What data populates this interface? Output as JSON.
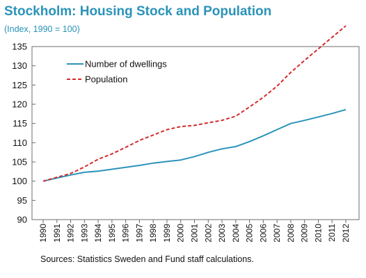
{
  "chart_data": {
    "type": "line",
    "title": "Stockholm: Housing Stock and Population",
    "subtitle": "(Index, 1990 = 100)",
    "xlabel": "",
    "ylabel": "",
    "x": [
      "1990",
      "1991",
      "1992",
      "1993",
      "1994",
      "1995",
      "1996",
      "1997",
      "1998",
      "1999",
      "2000",
      "2001",
      "2002",
      "2003",
      "2004",
      "2005",
      "2006",
      "2007",
      "2008",
      "2009",
      "2010",
      "2011",
      "2012"
    ],
    "ylim": [
      90,
      135
    ],
    "yticks": [
      90,
      95,
      100,
      105,
      110,
      115,
      120,
      125,
      130,
      135
    ],
    "grid": false,
    "legend": "top-left",
    "series": [
      {
        "name": "Number of dwellings",
        "color": "#2a93b9",
        "style": "solid",
        "values": [
          100,
          100.8,
          101.6,
          102.3,
          102.6,
          103.1,
          103.6,
          104.1,
          104.7,
          105.1,
          105.5,
          106.4,
          107.5,
          108.4,
          109.0,
          110.3,
          111.8,
          113.4,
          115.0,
          115.8,
          116.7,
          117.6,
          118.6
        ]
      },
      {
        "name": "Population",
        "color": "#d42a2a",
        "style": "dashed",
        "values": [
          100,
          101.0,
          102.0,
          103.7,
          105.7,
          107.1,
          108.8,
          110.6,
          112.0,
          113.4,
          114.2,
          114.5,
          115.2,
          115.8,
          116.9,
          119.3,
          121.8,
          124.7,
          128.3,
          131.4,
          134.4,
          137.4,
          140.4
        ]
      }
    ],
    "source": "Sources: Statistics Sweden and Fund staff calculations."
  }
}
